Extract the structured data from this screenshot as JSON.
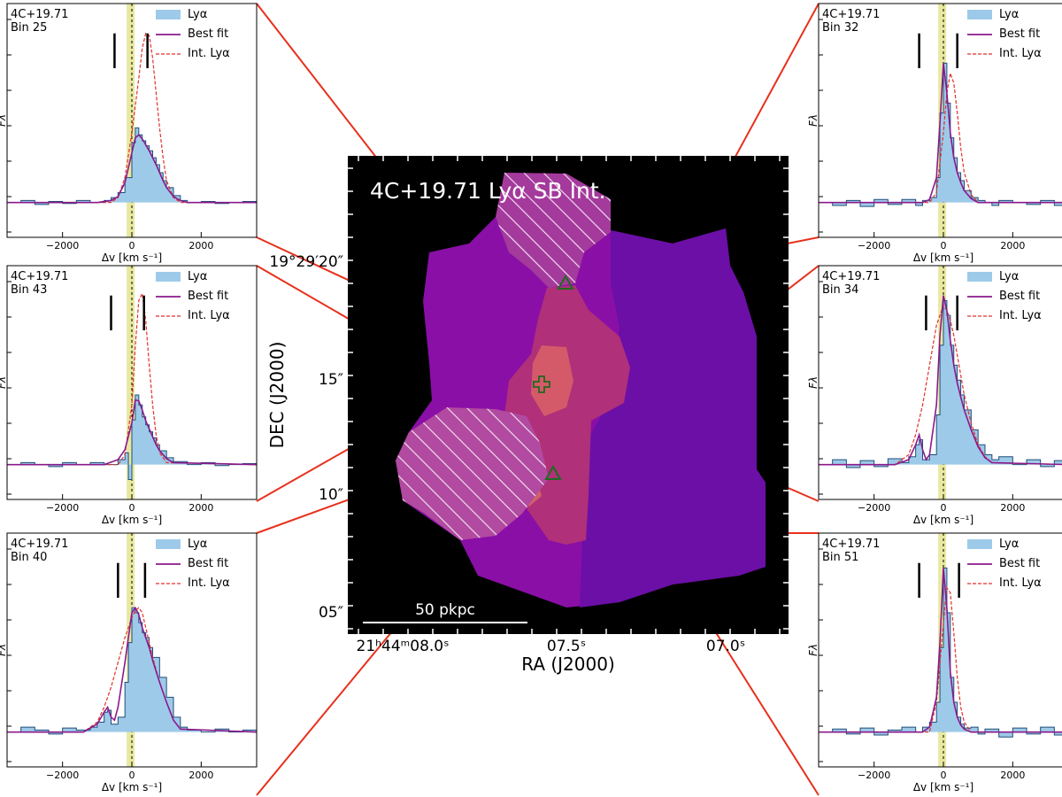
{
  "colors": {
    "lya_fill": "#9ecae9",
    "lya_step": "#1f4e79",
    "best_fit": "#8b1a8b",
    "int_lya": "#e0322d",
    "band": "#e8e8a0",
    "connector": "#e8301c",
    "map_bg": "#000000",
    "marker": "#1e6b1e"
  },
  "map": {
    "title": "4C+19.71 Lyα SB Int.",
    "xlabel": "RA (J2000)",
    "ylabel": "DEC (J2000)",
    "x_ticks": [
      "21ʰ44ᵐ08.0ˢ",
      "07.5ˢ",
      "07.0ˢ"
    ],
    "y_ticks": [
      "19°29′20″",
      "15″",
      "10″",
      "05″"
    ],
    "scalebar_label": "50 pkpc"
  },
  "chart_data": [
    {
      "type": "line",
      "object": "4C+19.71",
      "bin": "Bin 25",
      "xlabel": "Δv [km s⁻¹]",
      "ylabel": "Fλ",
      "xlim": [
        -3600,
        3600
      ],
      "x_ticks": [
        -2000,
        0,
        2000
      ],
      "band": [
        -150,
        80
      ],
      "vlines": [
        -500,
        450
      ],
      "legend": [
        "Lyα",
        "Best fit",
        "Int. Lyα"
      ],
      "series": [
        {
          "name": "Lyα",
          "x": [
            -3600,
            -3200,
            -2800,
            -2400,
            -2000,
            -1600,
            -1200,
            -800,
            -600,
            -400,
            -200,
            0,
            100,
            200,
            300,
            400,
            500,
            600,
            700,
            800,
            900,
            1000,
            1200,
            1400,
            1600,
            2000,
            2400,
            2800,
            3200,
            3600
          ],
          "y": [
            0.0,
            0.02,
            -0.02,
            0.01,
            -0.01,
            0.02,
            0.0,
            0.02,
            0.05,
            0.1,
            0.25,
            0.6,
            0.75,
            0.68,
            0.62,
            0.57,
            0.52,
            0.45,
            0.38,
            0.3,
            0.22,
            0.15,
            0.07,
            0.02,
            0.0,
            0.01,
            -0.01,
            0.0,
            0.01,
            0.0
          ]
        },
        {
          "name": "Best fit",
          "x": [
            -3600,
            -1000,
            -600,
            -400,
            -200,
            0,
            100,
            200,
            300,
            400,
            500,
            600,
            700,
            800,
            900,
            1000,
            1200,
            1400,
            1600,
            3600
          ],
          "y": [
            0.0,
            0.0,
            0.02,
            0.06,
            0.2,
            0.5,
            0.65,
            0.68,
            0.64,
            0.58,
            0.52,
            0.45,
            0.38,
            0.3,
            0.22,
            0.15,
            0.06,
            0.02,
            0.0,
            0.0
          ]
        },
        {
          "name": "Int. Lyα",
          "x": [
            -3600,
            -600,
            -400,
            -200,
            0,
            200,
            300,
            400,
            500,
            600,
            700,
            800,
            900,
            1000,
            1200,
            1400,
            3600
          ],
          "y": [
            0.0,
            0.0,
            0.05,
            0.25,
            0.7,
            1.25,
            1.55,
            1.7,
            1.68,
            1.45,
            1.1,
            0.75,
            0.45,
            0.22,
            0.05,
            0.0,
            0.0
          ]
        }
      ]
    },
    {
      "type": "line",
      "object": "4C+19.71",
      "bin": "Bin 43",
      "xlabel": "Δv [km s⁻¹]",
      "ylabel": "Fλ",
      "xlim": [
        -3600,
        3600
      ],
      "x_ticks": [
        -2000,
        0,
        2000
      ],
      "band": [
        -150,
        80
      ],
      "vlines": [
        -600,
        350
      ],
      "legend": [
        "Lyα",
        "Best fit",
        "Int. Lyα"
      ],
      "series": [
        {
          "name": "Lyα",
          "x": [
            -3600,
            -3200,
            -2800,
            -2400,
            -2000,
            -1600,
            -1200,
            -800,
            -400,
            -200,
            -100,
            0,
            100,
            200,
            300,
            400,
            500,
            600,
            700,
            800,
            1000,
            1200,
            1600,
            2000,
            2400,
            2800,
            3200,
            3600
          ],
          "y": [
            0.0,
            0.02,
            0.0,
            -0.02,
            0.02,
            0.0,
            0.02,
            0.0,
            0.05,
            0.12,
            -0.15,
            0.45,
            0.7,
            0.6,
            0.48,
            0.4,
            0.33,
            0.27,
            0.2,
            0.14,
            0.07,
            0.03,
            0.0,
            0.02,
            -0.01,
            0.0,
            0.01,
            0.0
          ]
        },
        {
          "name": "Best fit",
          "x": [
            -3600,
            -800,
            -400,
            -200,
            0,
            100,
            200,
            300,
            400,
            500,
            600,
            700,
            800,
            1000,
            1200,
            3600
          ],
          "y": [
            0.0,
            0.0,
            0.05,
            0.15,
            0.42,
            0.65,
            0.64,
            0.55,
            0.44,
            0.36,
            0.28,
            0.2,
            0.14,
            0.06,
            0.02,
            0.0
          ]
        },
        {
          "name": "Int. Lyα",
          "x": [
            -3600,
            -400,
            -200,
            0,
            100,
            200,
            300,
            400,
            500,
            600,
            700,
            800,
            1000,
            3600
          ],
          "y": [
            0.0,
            0.0,
            0.1,
            0.6,
            1.2,
            1.65,
            1.72,
            1.45,
            1.0,
            0.6,
            0.3,
            0.12,
            0.02,
            0.0
          ]
        }
      ]
    },
    {
      "type": "line",
      "object": "4C+19.71",
      "bin": "Bin 40",
      "xlabel": "Δv [km s⁻¹]",
      "ylabel": "Fλ",
      "xlim": [
        -3600,
        3600
      ],
      "x_ticks": [
        -2000,
        0,
        2000
      ],
      "band": [
        -150,
        80
      ],
      "vlines": [
        -400,
        380
      ],
      "legend": [
        "Lyα",
        "Best fit",
        "Int. Lyα"
      ],
      "series": [
        {
          "name": "Lyα",
          "x": [
            -3600,
            -3200,
            -2800,
            -2400,
            -2000,
            -1600,
            -1200,
            -1000,
            -800,
            -700,
            -600,
            -400,
            -200,
            -100,
            0,
            100,
            200,
            300,
            400,
            500,
            600,
            800,
            1000,
            1200,
            1400,
            1600,
            2000,
            2400,
            2800,
            3200,
            3600
          ],
          "y": [
            0.0,
            0.05,
            0.02,
            -0.02,
            0.04,
            0.02,
            0.05,
            0.1,
            0.2,
            0.22,
            0.08,
            0.15,
            0.5,
            0.9,
            1.25,
            1.2,
            1.1,
            1.0,
            0.95,
            0.85,
            0.75,
            0.55,
            0.35,
            0.15,
            0.05,
            0.02,
            0.0,
            0.03,
            0.0,
            0.02,
            0.0
          ]
        },
        {
          "name": "Best fit",
          "x": [
            -3600,
            -1400,
            -1000,
            -800,
            -700,
            -600,
            -500,
            -400,
            -200,
            0,
            100,
            200,
            300,
            400,
            500,
            600,
            800,
            1000,
            1200,
            1400,
            3600
          ],
          "y": [
            0.0,
            0.0,
            0.08,
            0.2,
            0.25,
            0.15,
            0.12,
            0.25,
            0.7,
            1.2,
            1.25,
            1.18,
            1.05,
            0.95,
            0.85,
            0.72,
            0.5,
            0.3,
            0.12,
            0.03,
            0.0
          ]
        },
        {
          "name": "Int. Lyα",
          "x": [
            -3600,
            -1400,
            -1000,
            -800,
            -600,
            -400,
            -200,
            0,
            100,
            200,
            300,
            400,
            500,
            600,
            800,
            1000,
            1200,
            1400,
            3600
          ],
          "y": [
            0.0,
            0.0,
            0.1,
            0.25,
            0.45,
            0.7,
            0.95,
            1.15,
            1.22,
            1.25,
            1.2,
            1.05,
            0.9,
            0.75,
            0.5,
            0.3,
            0.12,
            0.03,
            0.0
          ]
        }
      ]
    },
    {
      "type": "line",
      "object": "4C+19.71",
      "bin": "Bin 32",
      "xlabel": "Δv [km s⁻¹]",
      "ylabel": "Fλ",
      "xlim": [
        -3600,
        3600
      ],
      "x_ticks": [
        -2000,
        0,
        2000
      ],
      "band": [
        -150,
        80
      ],
      "vlines": [
        -700,
        400
      ],
      "legend": [
        "Lyα",
        "Best fit",
        "Int. Lyα"
      ],
      "series": [
        {
          "name": "Lyα",
          "x": [
            -3600,
            -3200,
            -2800,
            -2400,
            -2000,
            -1600,
            -1200,
            -800,
            -600,
            -400,
            -200,
            -100,
            0,
            100,
            200,
            300,
            400,
            500,
            600,
            800,
            1000,
            1200,
            1400,
            1600,
            2000,
            2400,
            2800,
            3200,
            3600
          ],
          "y": [
            0.0,
            -0.03,
            0.02,
            -0.04,
            0.03,
            -0.02,
            0.03,
            -0.03,
            0.02,
            0.05,
            0.25,
            0.9,
            1.4,
            1.0,
            0.65,
            0.45,
            0.3,
            0.22,
            0.12,
            0.05,
            0.02,
            0.0,
            -0.03,
            0.02,
            0.0,
            -0.02,
            0.02,
            -0.03,
            0.0
          ]
        },
        {
          "name": "Best fit",
          "x": [
            -3600,
            -600,
            -400,
            -200,
            -100,
            0,
            100,
            200,
            300,
            400,
            500,
            600,
            800,
            1000,
            3600
          ],
          "y": [
            0.0,
            0.0,
            0.03,
            0.25,
            0.8,
            1.4,
            1.1,
            0.7,
            0.45,
            0.3,
            0.2,
            0.12,
            0.04,
            0.0,
            0.0
          ]
        },
        {
          "name": "Int. Lyα",
          "x": [
            -3600,
            -400,
            -200,
            0,
            100,
            200,
            300,
            400,
            500,
            600,
            800,
            1000,
            3600
          ],
          "y": [
            0.0,
            0.0,
            0.1,
            0.7,
            1.1,
            1.3,
            1.2,
            0.9,
            0.55,
            0.3,
            0.08,
            0.0,
            0.0
          ]
        }
      ]
    },
    {
      "type": "line",
      "object": "4C+19.71",
      "bin": "Bin 34",
      "xlabel": "Δv [km s⁻¹]",
      "ylabel": "Fλ",
      "xlim": [
        -3600,
        3600
      ],
      "x_ticks": [
        -2000,
        0,
        2000
      ],
      "band": [
        -150,
        80
      ],
      "vlines": [
        -500,
        400
      ],
      "legend": [
        "Lyα",
        "Best fit",
        "Int. Lyα"
      ],
      "series": [
        {
          "name": "Lyα",
          "x": [
            -3600,
            -3200,
            -2800,
            -2400,
            -2000,
            -1600,
            -1200,
            -1000,
            -800,
            -700,
            -600,
            -400,
            -200,
            -100,
            0,
            100,
            200,
            300,
            400,
            500,
            600,
            800,
            1000,
            1200,
            1400,
            1600,
            2000,
            2400,
            2800,
            3200,
            3600
          ],
          "y": [
            0.0,
            0.05,
            -0.03,
            0.04,
            -0.02,
            0.06,
            0.02,
            0.08,
            0.2,
            0.25,
            0.05,
            0.1,
            0.5,
            1.2,
            1.65,
            1.5,
            1.2,
            1.0,
            0.85,
            0.7,
            0.55,
            0.35,
            0.2,
            0.1,
            0.05,
            0.08,
            0.0,
            0.05,
            -0.02,
            0.04,
            0.0
          ]
        },
        {
          "name": "Best fit",
          "x": [
            -3600,
            -1400,
            -1000,
            -800,
            -700,
            -600,
            -500,
            -400,
            -200,
            -100,
            0,
            100,
            200,
            300,
            400,
            500,
            600,
            800,
            1000,
            1200,
            1400,
            3600
          ],
          "y": [
            0.0,
            0.0,
            0.05,
            0.2,
            0.3,
            0.15,
            0.05,
            0.1,
            0.6,
            1.3,
            1.7,
            1.55,
            1.25,
            1.0,
            0.82,
            0.68,
            0.55,
            0.35,
            0.18,
            0.07,
            0.02,
            0.0
          ]
        },
        {
          "name": "Int. Lyα",
          "x": [
            -3600,
            -1400,
            -1000,
            -800,
            -600,
            -400,
            -200,
            0,
            100,
            200,
            300,
            400,
            500,
            600,
            800,
            1000,
            1200,
            1400,
            3600
          ],
          "y": [
            0.0,
            0.0,
            0.1,
            0.3,
            0.6,
            1.0,
            1.4,
            1.6,
            1.55,
            1.45,
            1.3,
            1.1,
            0.9,
            0.7,
            0.42,
            0.2,
            0.08,
            0.02,
            0.0
          ]
        }
      ]
    },
    {
      "type": "line",
      "object": "4C+19.71",
      "bin": "Bin 51",
      "xlabel": "Δv [km s⁻¹]",
      "ylabel": "Fλ",
      "xlim": [
        -3600,
        3600
      ],
      "x_ticks": [
        -2000,
        0,
        2000
      ],
      "band": [
        -150,
        80
      ],
      "vlines": [
        -700,
        450
      ],
      "legend": [
        "Lyα",
        "Best fit",
        "Int. Lyα"
      ],
      "series": [
        {
          "name": "Lyα",
          "x": [
            -3600,
            -3200,
            -2800,
            -2400,
            -2000,
            -1600,
            -1200,
            -800,
            -600,
            -400,
            -200,
            -100,
            0,
            100,
            200,
            300,
            400,
            500,
            600,
            800,
            1000,
            1200,
            1600,
            2000,
            2400,
            2800,
            3200,
            3600
          ],
          "y": [
            0.0,
            0.03,
            -0.02,
            0.04,
            -0.03,
            0.02,
            0.05,
            0.0,
            0.05,
            0.1,
            0.3,
            0.85,
            1.65,
            1.2,
            0.55,
            0.3,
            0.15,
            0.08,
            0.04,
            0.05,
            -0.02,
            0.03,
            -0.05,
            0.04,
            -0.02,
            0.05,
            -0.03,
            0.0
          ]
        },
        {
          "name": "Best fit",
          "x": [
            -3600,
            -600,
            -400,
            -200,
            -100,
            0,
            100,
            200,
            300,
            400,
            500,
            600,
            800,
            3600
          ],
          "y": [
            0.0,
            0.0,
            0.05,
            0.35,
            0.9,
            1.65,
            1.25,
            0.6,
            0.3,
            0.15,
            0.07,
            0.03,
            0.0,
            0.0
          ]
        },
        {
          "name": "Int. Lyα",
          "x": [
            -3600,
            -400,
            -200,
            0,
            100,
            200,
            300,
            400,
            500,
            600,
            800,
            3600
          ],
          "y": [
            0.0,
            0.0,
            0.3,
            1.1,
            1.45,
            1.4,
            1.0,
            0.55,
            0.25,
            0.1,
            0.0,
            0.0
          ]
        }
      ]
    }
  ]
}
